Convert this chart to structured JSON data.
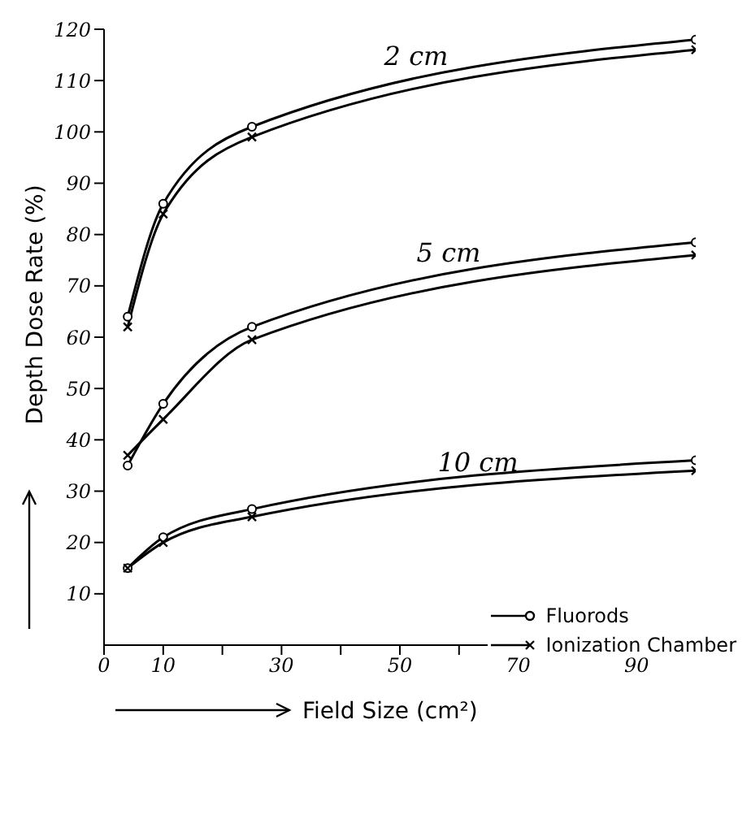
{
  "chart_data": {
    "type": "line",
    "xlabel": "Field Size (cm²)",
    "ylabel": "Depth Dose Rate (%)",
    "x": [
      4,
      10,
      25,
      100
    ],
    "series": [
      {
        "name": "Fluorods",
        "color": "#000000",
        "marker": "circle",
        "values": [
          64,
          86,
          101,
          118
        ]
      },
      {
        "name": "Ionization Chamber",
        "color": "#000000",
        "marker": "cross",
        "values": [
          62,
          84,
          99,
          116
        ]
      },
      {
        "color": "#000000",
        "marker": "circle",
        "values": [
          35,
          47,
          62,
          78.5
        ]
      },
      {
        "color": "#000000",
        "marker": "cross",
        "values": [
          37,
          44,
          59.5,
          76
        ]
      },
      {
        "color": "#000000",
        "marker": "circle",
        "values": [
          15,
          21,
          26.5,
          36
        ]
      },
      {
        "color": "#000000",
        "marker": "cross",
        "values": [
          15,
          20,
          25,
          34
        ]
      }
    ],
    "annotations": [
      "2 cm",
      "5 cm",
      "10 cm"
    ],
    "xlim": [
      0,
      100
    ],
    "xticks": [
      0,
      10,
      {
        "value": 20,
        "label": null
      },
      30,
      {
        "value": 40,
        "label": null
      },
      50,
      {
        "value": 60,
        "label": null
      },
      70,
      {
        "value": 80,
        "label": null
      },
      90,
      {
        "value": 100,
        "label": null
      }
    ],
    "ylim": [
      0,
      120
    ],
    "yticks": [
      10,
      20,
      30,
      40,
      50,
      60,
      70,
      80,
      90,
      100,
      110,
      120
    ],
    "grid": false,
    "legend": "bottom right",
    "line_style": "solid"
  }
}
